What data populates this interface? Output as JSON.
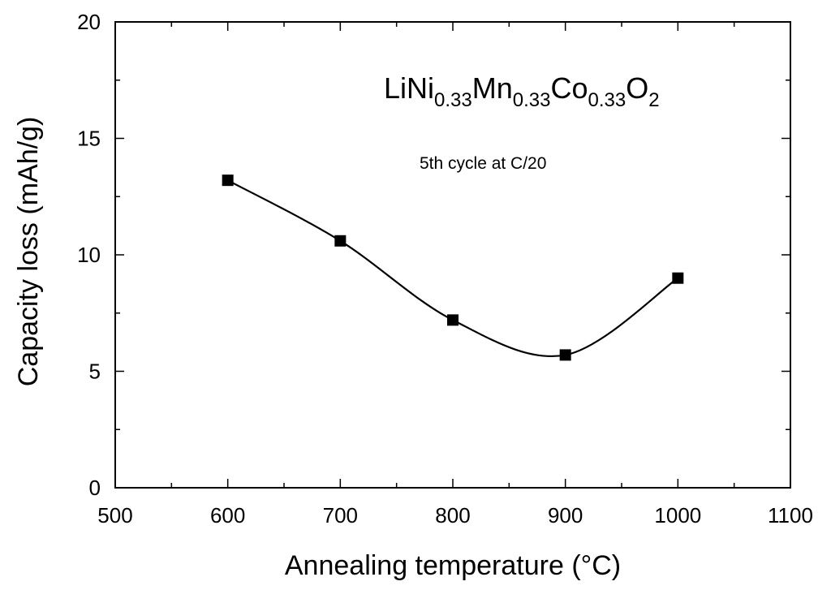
{
  "chart_data": {
    "type": "line",
    "title": "",
    "xlabel": "Annealing temperature (°C)",
    "ylabel": "Capacity loss (mAh/g)",
    "xlim": [
      500,
      1100
    ],
    "ylim": [
      0,
      20
    ],
    "x_major_ticks": [
      500,
      600,
      700,
      800,
      900,
      1000,
      1100
    ],
    "y_major_ticks": [
      0,
      5,
      10,
      15,
      20
    ],
    "x_tick_labels": [
      "500",
      "600",
      "700",
      "800",
      "900",
      "1000",
      "1100"
    ],
    "y_tick_labels": [
      "0",
      "5",
      "10",
      "15",
      "20"
    ],
    "grid": false,
    "series": [
      {
        "name": "LiNi0.33Mn0.33Co0.33O2",
        "marker": "square",
        "line": "smooth",
        "color": "#000000",
        "x": [
          600,
          700,
          800,
          900,
          1000
        ],
        "values": [
          13.2,
          10.6,
          7.2,
          5.7,
          9.0
        ]
      }
    ],
    "annotations": {
      "formula": {
        "parts": [
          {
            "text": "LiNi",
            "sub": false
          },
          {
            "text": "0.33",
            "sub": true
          },
          {
            "text": "Mn",
            "sub": false
          },
          {
            "text": "0.33",
            "sub": true
          },
          {
            "text": "Co",
            "sub": false
          },
          {
            "text": "0.33",
            "sub": true
          },
          {
            "text": "O",
            "sub": false
          },
          {
            "text": "2",
            "sub": true
          }
        ]
      },
      "condition": "5th cycle at C/20"
    }
  }
}
